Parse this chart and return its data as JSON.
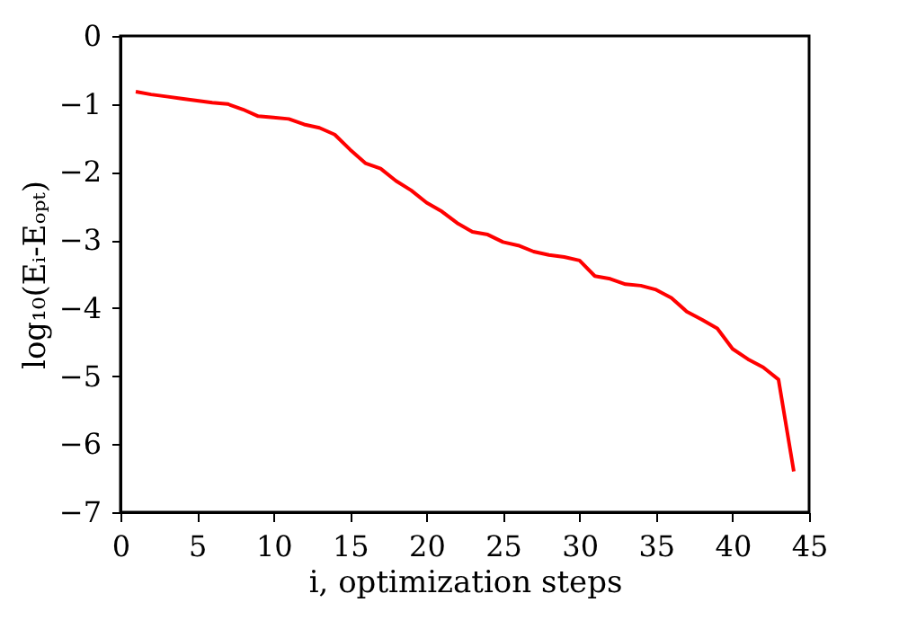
{
  "chart_data": {
    "type": "line",
    "xlabel": "i, optimization steps",
    "ylabel": "log₁₀(Eᵢ-Eₒₚₜ)",
    "x": [
      1,
      2,
      3,
      4,
      5,
      6,
      7,
      8,
      9,
      10,
      11,
      12,
      13,
      14,
      15,
      16,
      17,
      18,
      19,
      20,
      21,
      22,
      23,
      24,
      25,
      26,
      27,
      28,
      29,
      30,
      31,
      32,
      33,
      34,
      35,
      36,
      37,
      38,
      39,
      40,
      41,
      42,
      43,
      44
    ],
    "series": [
      {
        "color": "#ff0000",
        "values": [
          -0.82,
          -0.86,
          -0.89,
          -0.92,
          -0.95,
          -0.98,
          -1.0,
          -1.08,
          -1.18,
          -1.2,
          -1.22,
          -1.3,
          -1.35,
          -1.45,
          -1.67,
          -1.87,
          -1.95,
          -2.13,
          -2.27,
          -2.45,
          -2.58,
          -2.75,
          -2.88,
          -2.92,
          -3.03,
          -3.08,
          -3.17,
          -3.22,
          -3.25,
          -3.3,
          -3.53,
          -3.57,
          -3.65,
          -3.67,
          -3.73,
          -3.85,
          -4.05,
          -4.17,
          -4.3,
          -4.6,
          -4.75,
          -4.87,
          -5.05,
          -6.4
        ]
      }
    ],
    "xlim": [
      0,
      45
    ],
    "xticks": [
      0,
      5,
      10,
      15,
      20,
      25,
      30,
      35,
      40,
      45
    ],
    "ylim": [
      -7,
      0
    ],
    "yticks": [
      -7,
      -6,
      -5,
      -4,
      -3,
      -2,
      -1,
      0
    ],
    "grid": false,
    "marker": "none",
    "line_style": "solid"
  }
}
